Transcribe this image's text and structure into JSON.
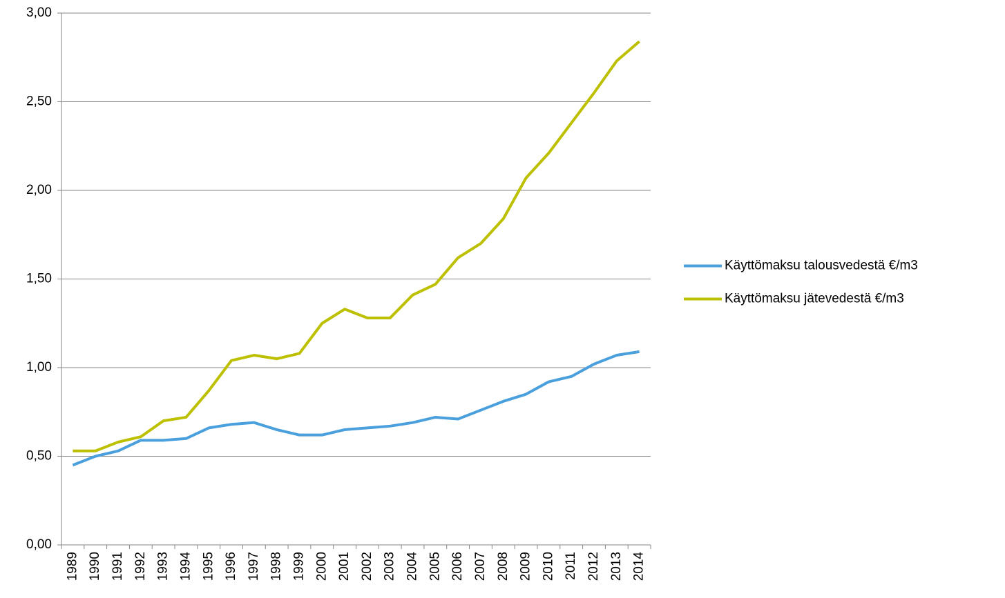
{
  "chart_data": {
    "type": "line",
    "categories": [
      "1989",
      "1990",
      "1991",
      "1992",
      "1993",
      "1994",
      "1995",
      "1996",
      "1997",
      "1998",
      "1999",
      "2000",
      "2001",
      "2002",
      "2003",
      "2004",
      "2005",
      "2006",
      "2007",
      "2008",
      "2009",
      "2010",
      "2011",
      "2012",
      "2013",
      "2014"
    ],
    "series": [
      {
        "name": "Käyttömaksu talousvedestä €/m3",
        "color": "#4a9fdd",
        "values": [
          0.45,
          0.5,
          0.53,
          0.59,
          0.59,
          0.6,
          0.66,
          0.68,
          0.69,
          0.65,
          0.62,
          0.62,
          0.65,
          0.66,
          0.67,
          0.69,
          0.72,
          0.71,
          0.76,
          0.81,
          0.85,
          0.92,
          0.95,
          1.02,
          1.07,
          1.09
        ]
      },
      {
        "name": "Käyttömaksu jätevedestä €/m3",
        "color": "#bcc000",
        "values": [
          0.53,
          0.53,
          0.58,
          0.61,
          0.7,
          0.72,
          0.87,
          1.04,
          1.07,
          1.05,
          1.08,
          1.25,
          1.33,
          1.28,
          1.28,
          1.41,
          1.47,
          1.62,
          1.7,
          1.84,
          2.07,
          2.21,
          2.38,
          2.55,
          2.73,
          2.84
        ]
      }
    ],
    "ylim": [
      0,
      3
    ],
    "yticks": [
      {
        "value": 0,
        "label": "0,00"
      },
      {
        "value": 0.5,
        "label": "0,50"
      },
      {
        "value": 1,
        "label": "1,00"
      },
      {
        "value": 1.5,
        "label": "1,50"
      },
      {
        "value": 2,
        "label": "2,00"
      },
      {
        "value": 2.5,
        "label": "2,50"
      },
      {
        "value": 3,
        "label": "3,00"
      }
    ],
    "grid": true,
    "legend": "right"
  }
}
